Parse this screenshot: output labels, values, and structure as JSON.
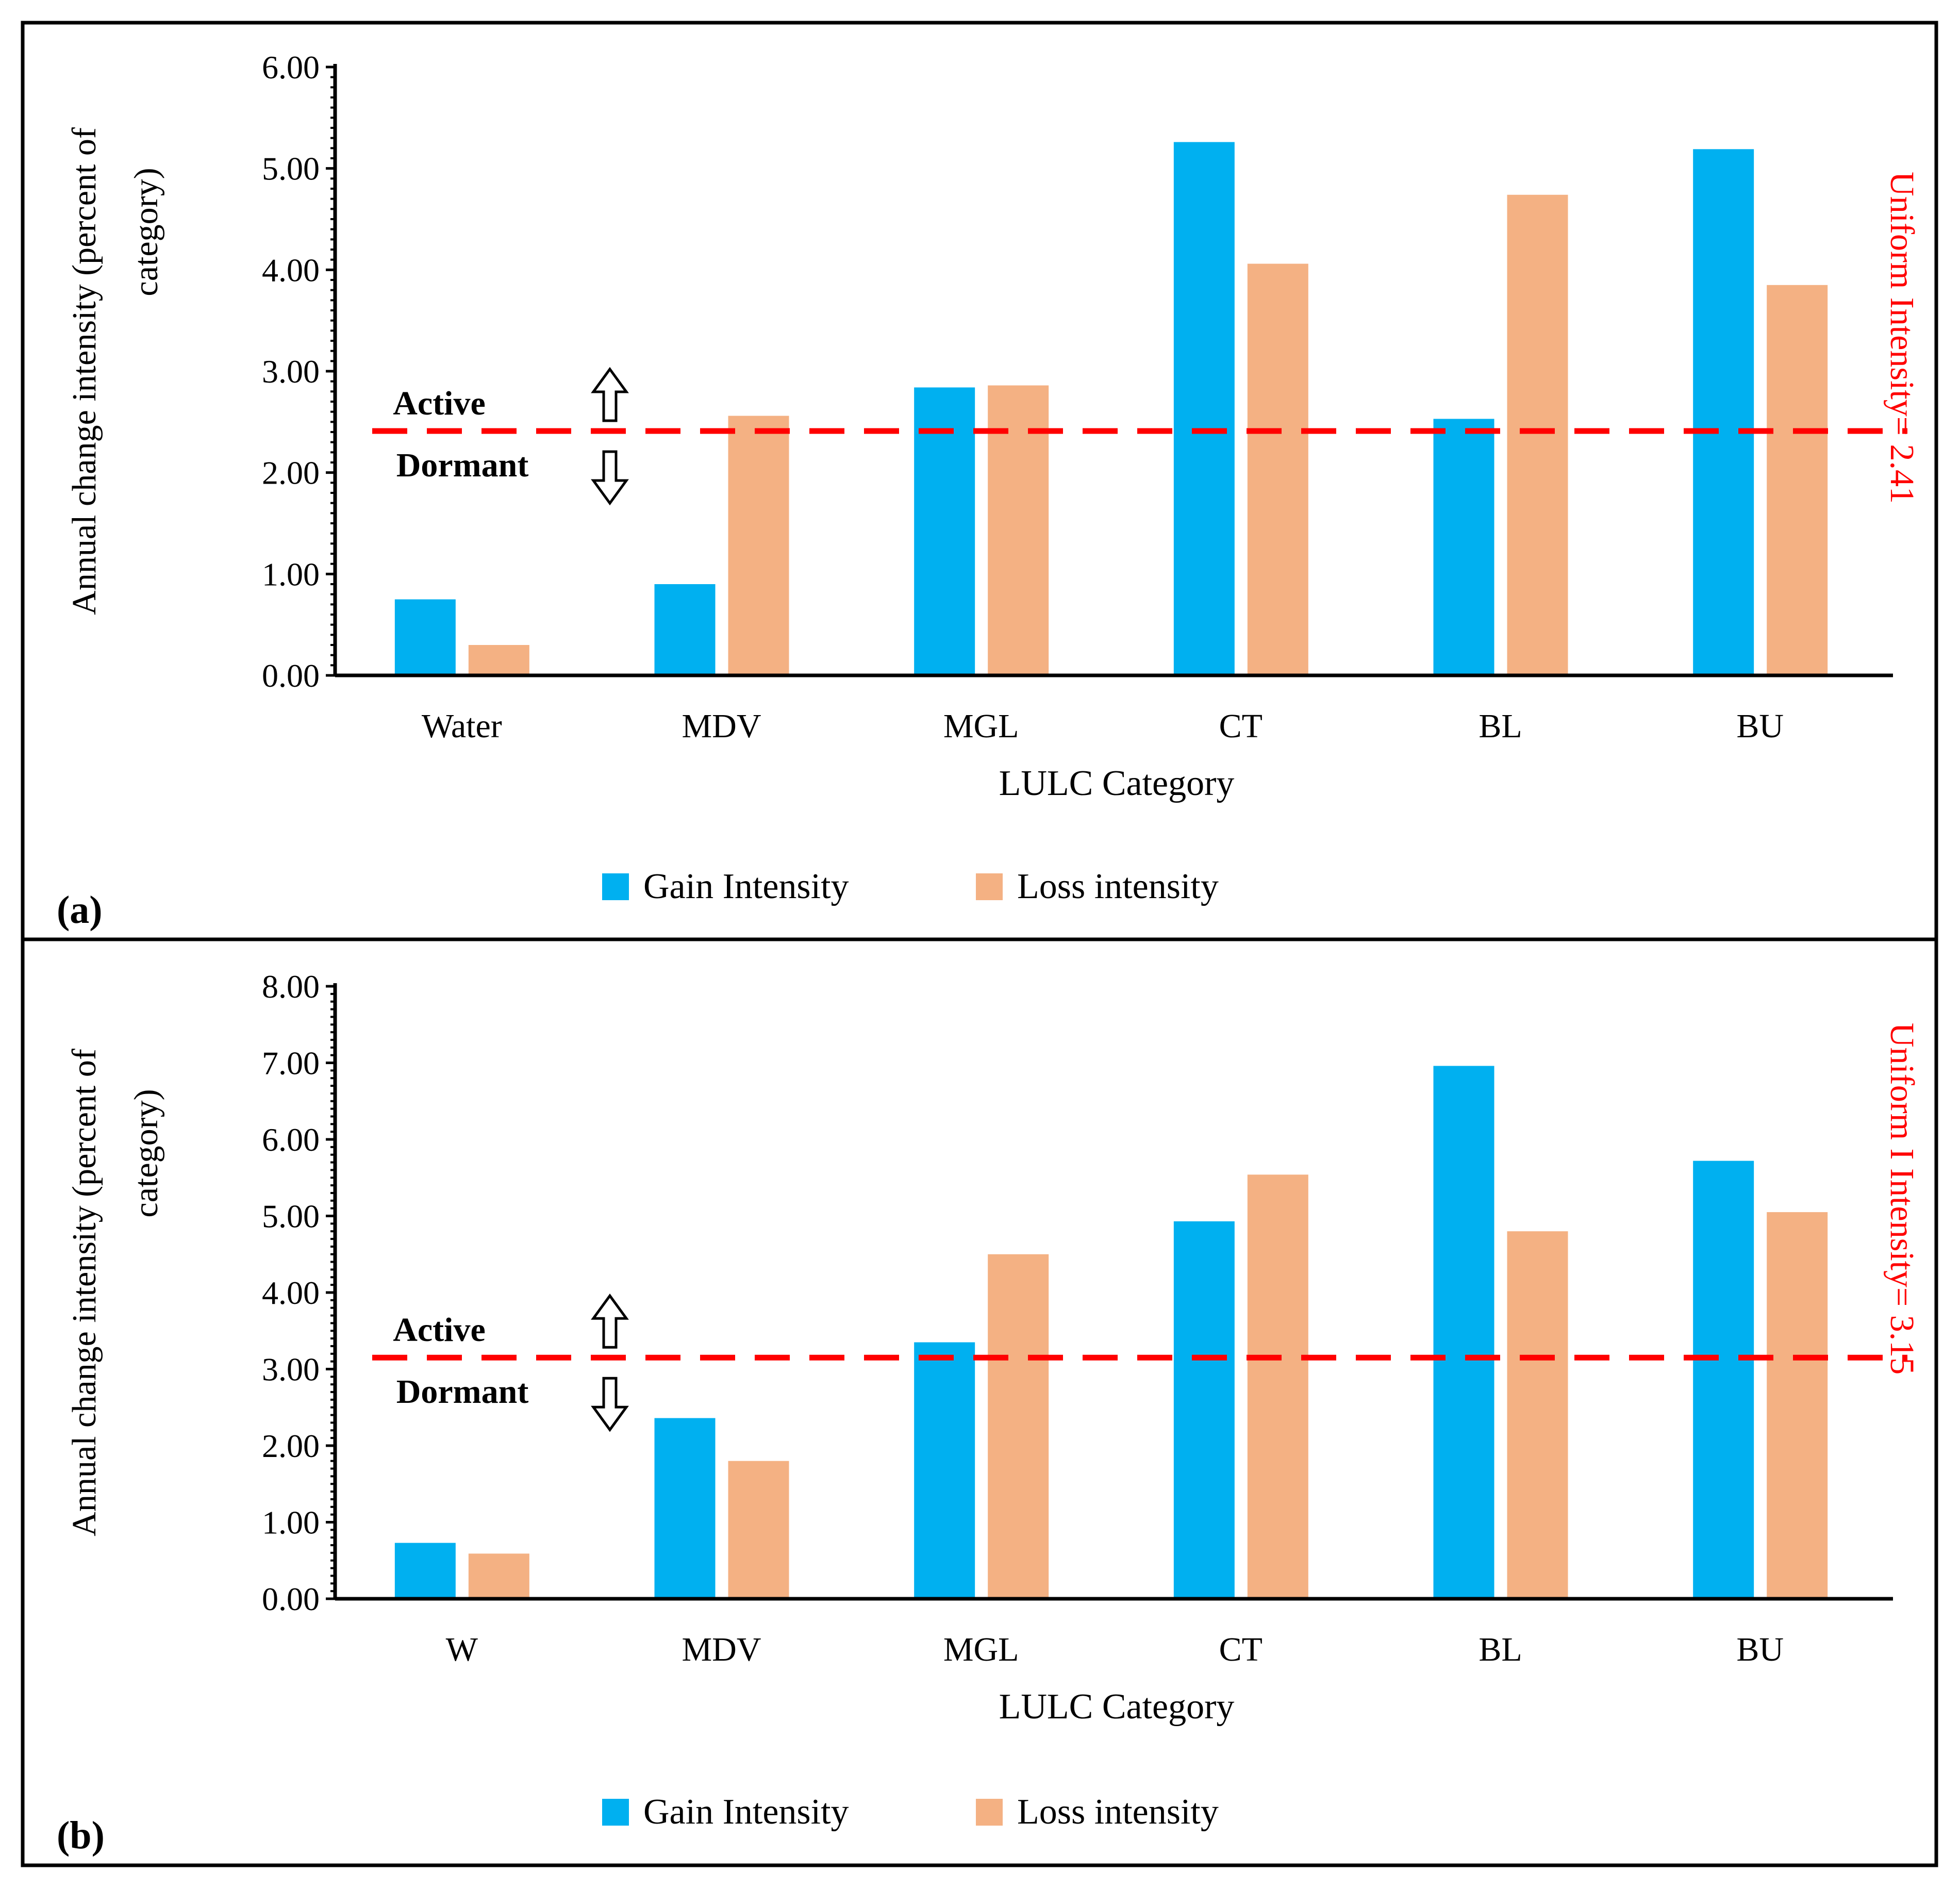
{
  "figure_colors": {
    "gain": "#00B0F0",
    "loss": "#F4B183",
    "uniform_line": "#FF0000",
    "axis": "#000000",
    "frame": "#000000"
  },
  "chart_data": [
    {
      "type": "bar",
      "panel_label": "(a)",
      "title": "",
      "xlabel": "LULC Category",
      "ylabel": "Annual change intensity (percent of category)",
      "ylabel_lines": [
        "Annual change intensity (percent of",
        "category)"
      ],
      "categories": [
        "Water",
        "MDV",
        "MGL",
        "CT",
        "BL",
        "BU"
      ],
      "series": [
        {
          "name": "Gain Intensity",
          "values": [
            0.75,
            0.9,
            2.84,
            5.26,
            2.53,
            5.19
          ]
        },
        {
          "name": "Loss intensity",
          "values": [
            0.3,
            2.56,
            2.86,
            4.06,
            4.74,
            3.85
          ]
        }
      ],
      "ylim": [
        0,
        6
      ],
      "yticks": [
        0,
        1,
        2,
        3,
        4,
        5,
        6
      ],
      "ytick_labels": [
        "0.00",
        "1.00",
        "2.00",
        "3.00",
        "4.00",
        "5.00",
        "6.00"
      ],
      "uniform_intensity": 2.41,
      "uniform_label": "Uniform Intensity= 2.41",
      "active_label": "Active",
      "dormant_label": "Dormant",
      "legend_position": "bottom-center",
      "grid": false
    },
    {
      "type": "bar",
      "panel_label": "(b)",
      "title": "",
      "xlabel": "LULC Category",
      "ylabel": "Annual change intensity (percent of category)",
      "ylabel_lines": [
        "Annual change intensity (percent of",
        "category)"
      ],
      "categories": [
        "W",
        "MDV",
        "MGL",
        "CT",
        "BL",
        "BU"
      ],
      "series": [
        {
          "name": "Gain Intensity",
          "values": [
            0.73,
            2.36,
            3.35,
            4.93,
            6.96,
            5.72
          ]
        },
        {
          "name": "Loss intensity",
          "values": [
            0.59,
            1.8,
            4.5,
            5.54,
            4.8,
            5.05
          ]
        }
      ],
      "ylim": [
        0,
        8
      ],
      "yticks": [
        0,
        1,
        2,
        3,
        4,
        5,
        6,
        7,
        8
      ],
      "ytick_labels": [
        "0.00",
        "1.00",
        "2.00",
        "3.00",
        "4.00",
        "5.00",
        "6.00",
        "7.00",
        "8.00"
      ],
      "uniform_intensity": 3.15,
      "uniform_label": "Uniform I Intensity= 3.15",
      "active_label": "Active",
      "dormant_label": "Dormant",
      "legend_position": "bottom-center",
      "grid": false
    }
  ]
}
